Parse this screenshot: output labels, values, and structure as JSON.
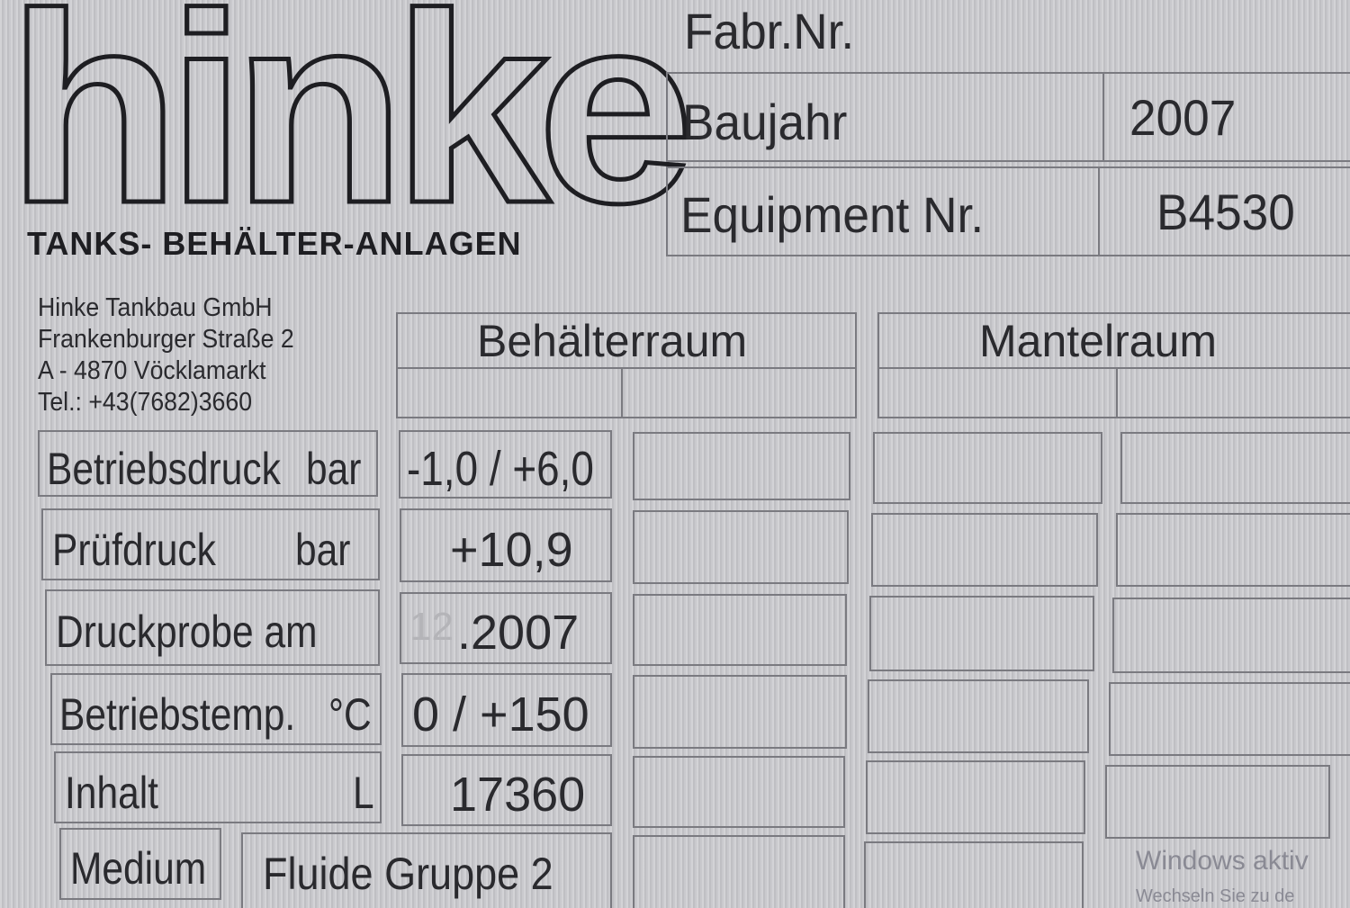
{
  "logo": {
    "text": "hinke",
    "tagline": "TANKS- BEHÄLTER-ANLAGEN"
  },
  "header": {
    "fabr_nr_label": "Fabr.Nr.",
    "baujahr_label": "Baujahr",
    "baujahr_value": "2007",
    "equipment_label": "Equipment Nr.",
    "equipment_value": "B4530"
  },
  "company": {
    "lines": [
      "Hinke Tankbau GmbH",
      "Frankenburger Straße 2",
      "A - 4870  Vöcklamarkt",
      "Tel.: +43(7682)3660"
    ]
  },
  "columns": {
    "behaelterraum": "Behälterraum",
    "mantelraum": "Mantelraum"
  },
  "rows": [
    {
      "label": "Betriebsdruck",
      "unit": "bar",
      "value": "-1,0 / +6,0"
    },
    {
      "label": "Prüfdruck",
      "unit": "bar",
      "value": "+10,9"
    },
    {
      "label": "Druckprobe am",
      "unit": "",
      "value_prefix": "12",
      "value": ".2007"
    },
    {
      "label": "Betriebstemp.",
      "unit": "°C",
      "value": "0 / +150"
    },
    {
      "label": "Inhalt",
      "unit": "L",
      "value": "17360"
    }
  ],
  "medium": {
    "label": "Medium",
    "value": "Fluide Gruppe 2"
  },
  "watermark": {
    "line1": "Windows aktiv",
    "line2": "Wechseln Sie zu de"
  }
}
